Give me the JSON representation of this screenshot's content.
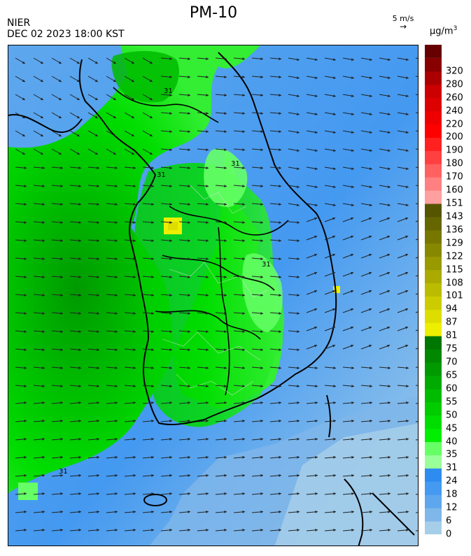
{
  "header": {
    "title": "PM-10",
    "agency": "NIER",
    "datetime": "DEC 02 2023 18:00 KST",
    "wind_reference": "5 m/s",
    "unit_text": "µg/m",
    "unit_exponent": "3"
  },
  "legend": {
    "bins": [
      {
        "lower": 0,
        "color": "#a6cee9"
      },
      {
        "lower": 6,
        "color": "#7fb7ea"
      },
      {
        "lower": 12,
        "color": "#5ea7ee"
      },
      {
        "lower": 18,
        "color": "#4499f0"
      },
      {
        "lower": 24,
        "color": "#2e8cf0"
      },
      {
        "lower": 31,
        "color": "#99ff99"
      },
      {
        "lower": 35,
        "color": "#66ff66"
      },
      {
        "lower": 40,
        "color": "#00ee00"
      },
      {
        "lower": 45,
        "color": "#00dd00"
      },
      {
        "lower": 50,
        "color": "#00cc00"
      },
      {
        "lower": 55,
        "color": "#00bb00"
      },
      {
        "lower": 60,
        "color": "#00aa00"
      },
      {
        "lower": 65,
        "color": "#009900"
      },
      {
        "lower": 70,
        "color": "#008800"
      },
      {
        "lower": 75,
        "color": "#007700"
      },
      {
        "lower": 81,
        "color": "#eeee00"
      },
      {
        "lower": 87,
        "color": "#dddd00"
      },
      {
        "lower": 94,
        "color": "#cccc00"
      },
      {
        "lower": 101,
        "color": "#bbbb00"
      },
      {
        "lower": 108,
        "color": "#aaaa00"
      },
      {
        "lower": 115,
        "color": "#999900"
      },
      {
        "lower": 122,
        "color": "#888800"
      },
      {
        "lower": 129,
        "color": "#777700"
      },
      {
        "lower": 136,
        "color": "#666600"
      },
      {
        "lower": 143,
        "color": "#555500"
      },
      {
        "lower": 151,
        "color": "#ffa0a0"
      },
      {
        "lower": 160,
        "color": "#ff8080"
      },
      {
        "lower": 170,
        "color": "#ff6060"
      },
      {
        "lower": 180,
        "color": "#ff4040"
      },
      {
        "lower": 190,
        "color": "#ff2020"
      },
      {
        "lower": 200,
        "color": "#ff0000"
      },
      {
        "lower": 220,
        "color": "#ee0000"
      },
      {
        "lower": 240,
        "color": "#dd0000"
      },
      {
        "lower": 260,
        "color": "#cc0000"
      },
      {
        "lower": 280,
        "color": "#aa0000"
      },
      {
        "lower": 320,
        "color": "#880000"
      }
    ],
    "top_color": "#660000"
  },
  "map": {
    "contour_label": "31",
    "colors": {
      "sea_far": "#a6cee9",
      "sea_mid": "#4499f0",
      "land_outline": "#000000",
      "district_lines": "#cccccc",
      "arrows": "#222222"
    }
  }
}
